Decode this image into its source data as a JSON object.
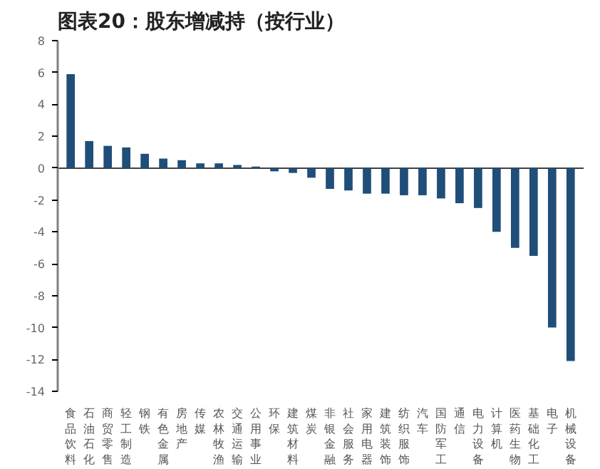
{
  "chart_data": {
    "type": "bar",
    "title": "图表20：股东增减持（按行业）",
    "categories": [
      "食品饮料",
      "石油石化",
      "商贸零售",
      "轻工制造",
      "钢铁",
      "有色金属",
      "房地产",
      "传媒",
      "农林牧渔",
      "交通运输",
      "公用事业",
      "环保",
      "建筑材料",
      "煤炭",
      "非银金融",
      "社会服务",
      "家用电器",
      "建筑装饰",
      "纺织服饰",
      "汽车",
      "国防军工",
      "通信",
      "电力设备",
      "计算机",
      "医药生物",
      "基础化工",
      "电子",
      "机械设备"
    ],
    "values": [
      5.9,
      1.7,
      1.4,
      1.3,
      0.9,
      0.6,
      0.5,
      0.3,
      0.3,
      0.2,
      0.1,
      -0.2,
      -0.3,
      -0.6,
      -1.3,
      -1.4,
      -1.6,
      -1.6,
      -1.7,
      -1.7,
      -1.9,
      -2.2,
      -2.5,
      -4,
      -5,
      -5.5,
      -10,
      -12.1
    ],
    "color": "#1f4e79",
    "ylim": [
      -14,
      8
    ],
    "yticks": [
      -14,
      -12,
      -10,
      -8,
      -6,
      -4,
      -2,
      0,
      2,
      4,
      6,
      8
    ]
  }
}
